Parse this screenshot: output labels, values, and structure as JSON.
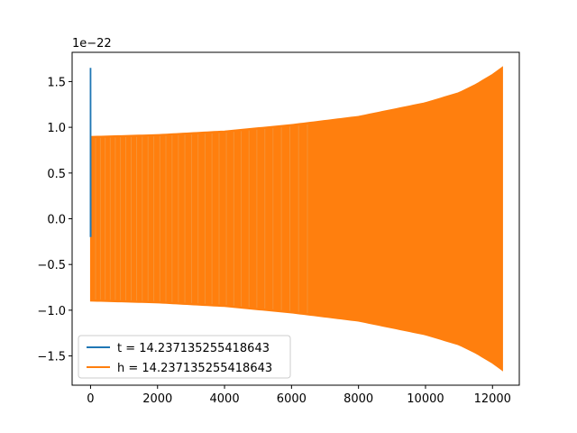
{
  "chart_data": {
    "type": "line",
    "title": "",
    "xlabel": "",
    "ylabel": "",
    "y_offset_text": "1e−22",
    "xlim": [
      -550,
      12800
    ],
    "ylim": [
      -1.82,
      1.82
    ],
    "grid": false,
    "legend_placement": "lower-left",
    "x_ticks": [
      0,
      2000,
      4000,
      6000,
      8000,
      10000,
      12000
    ],
    "x_tick_labels": [
      "0",
      "2000",
      "4000",
      "6000",
      "8000",
      "10000",
      "12000"
    ],
    "y_ticks": [
      1.5,
      1.0,
      0.5,
      0.0,
      -0.5,
      -1.0,
      -1.5
    ],
    "y_tick_labels": [
      "1.5",
      "1.0",
      "0.5",
      "0.0",
      "−0.5",
      "−1.0",
      "−1.5"
    ],
    "series": [
      {
        "name": "t = 14.237135255418643",
        "color": "#1f77b4",
        "x": [
          0,
          0,
          0,
          5
        ],
        "y": [
          -0.2,
          1.65,
          1.65,
          -0.2
        ]
      },
      {
        "name": "h = 14.237135255418643",
        "color": "#ff7f0e",
        "envelope_x": [
          0,
          2000,
          4000,
          6000,
          8000,
          10000,
          11000,
          11500,
          12000,
          12300
        ],
        "envelope_upper": [
          0.9,
          0.92,
          0.96,
          1.03,
          1.12,
          1.27,
          1.38,
          1.47,
          1.58,
          1.66
        ],
        "envelope_lower": [
          -0.9,
          -0.92,
          -0.96,
          -1.03,
          -1.12,
          -1.27,
          -1.38,
          -1.47,
          -1.58,
          -1.66
        ]
      }
    ]
  }
}
